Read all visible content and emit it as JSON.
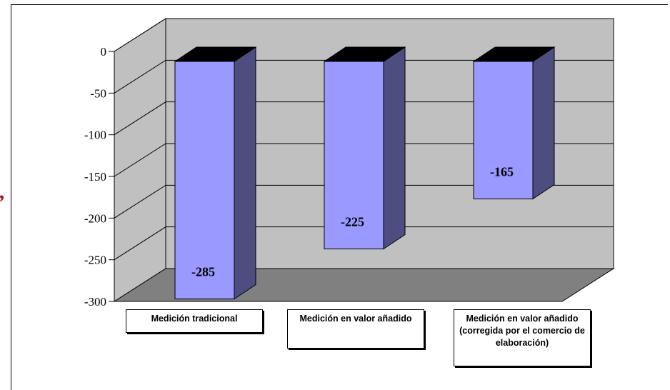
{
  "chart_data": {
    "type": "bar",
    "categories": [
      "Medición tradicional",
      "Medición en valor añadido",
      "Medición en valor añadido (corregida por el comercio de elaboración)"
    ],
    "values": [
      -285,
      -225,
      -165
    ],
    "value_labels": [
      "-285",
      "-225",
      "-165"
    ],
    "yticks": [
      0,
      -50,
      -100,
      -150,
      -200,
      -250,
      -300
    ],
    "ylim": [
      -300,
      0
    ],
    "grid": true,
    "three_d": true,
    "colors": {
      "bar_front": "#9999ff",
      "bar_side": "#4d4d80",
      "bar_top": "#000000",
      "back_wall": "#c0c0c0",
      "floor": "#808080",
      "grid": "#000000"
    }
  }
}
